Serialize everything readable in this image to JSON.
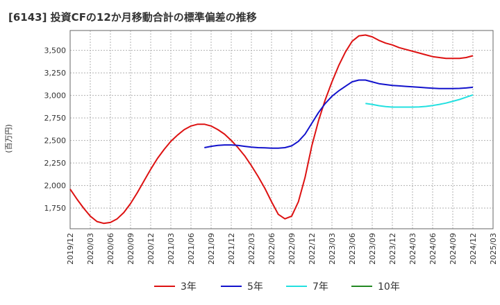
{
  "chart_data": {
    "type": "line",
    "title": "[6143]  投資CFの12か月移動合計の標準偏差の推移",
    "ylabel": "(百万円)",
    "xlabel": "",
    "ylim": [
      1520,
      3720
    ],
    "yticks": [
      1750,
      2000,
      2250,
      2500,
      2750,
      3000,
      3250,
      3500
    ],
    "ytick_labels": [
      "1,750",
      "2,000",
      "2,250",
      "2,500",
      "2,750",
      "3,000",
      "3,250",
      "3,500"
    ],
    "xticks": [
      "2019/12",
      "2020/03",
      "2020/06",
      "2020/09",
      "2020/12",
      "2021/03",
      "2021/06",
      "2021/09",
      "2021/12",
      "2022/03",
      "2022/06",
      "2022/09",
      "2022/12",
      "2023/03",
      "2023/06",
      "2023/09",
      "2023/12",
      "2024/03",
      "2024/06",
      "2024/09",
      "2024/12",
      "2025/03"
    ],
    "grid": true,
    "legend_position": "bottom",
    "series": [
      {
        "name": "3年",
        "color": "#dd1111",
        "x": [
          "2019/12",
          "2020/01",
          "2020/02",
          "2020/03",
          "2020/04",
          "2020/05",
          "2020/06",
          "2020/07",
          "2020/08",
          "2020/09",
          "2020/10",
          "2020/11",
          "2020/12",
          "2021/01",
          "2021/02",
          "2021/03",
          "2021/04",
          "2021/05",
          "2021/06",
          "2021/07",
          "2021/08",
          "2021/09",
          "2021/10",
          "2021/11",
          "2021/12",
          "2022/01",
          "2022/02",
          "2022/03",
          "2022/04",
          "2022/05",
          "2022/06",
          "2022/07",
          "2022/08",
          "2022/09",
          "2022/10",
          "2022/11",
          "2022/12",
          "2023/01",
          "2023/02",
          "2023/03",
          "2023/04",
          "2023/05",
          "2023/06",
          "2023/07",
          "2023/08",
          "2023/09",
          "2023/10",
          "2023/11",
          "2023/12",
          "2024/01",
          "2024/02",
          "2024/03",
          "2024/04",
          "2024/05",
          "2024/06",
          "2024/07",
          "2024/08",
          "2024/09",
          "2024/10",
          "2024/11",
          "2024/12"
        ],
        "values": [
          1960,
          1850,
          1750,
          1660,
          1600,
          1580,
          1590,
          1630,
          1700,
          1800,
          1920,
          2050,
          2180,
          2300,
          2400,
          2490,
          2560,
          2620,
          2660,
          2680,
          2680,
          2660,
          2620,
          2570,
          2500,
          2420,
          2330,
          2220,
          2100,
          1970,
          1820,
          1680,
          1630,
          1660,
          1820,
          2090,
          2440,
          2720,
          2950,
          3150,
          3330,
          3480,
          3600,
          3660,
          3670,
          3650,
          3610,
          3580,
          3560,
          3530,
          3510,
          3490,
          3470,
          3450,
          3430,
          3420,
          3410,
          3410,
          3410,
          3420,
          3440
        ]
      },
      {
        "name": "5年",
        "color": "#1111cc",
        "x": [
          "2021/08",
          "2021/09",
          "2021/10",
          "2021/11",
          "2021/12",
          "2022/01",
          "2022/02",
          "2022/03",
          "2022/04",
          "2022/05",
          "2022/06",
          "2022/07",
          "2022/08",
          "2022/09",
          "2022/10",
          "2022/11",
          "2022/12",
          "2023/01",
          "2023/02",
          "2023/03",
          "2023/04",
          "2023/05",
          "2023/06",
          "2023/07",
          "2023/08",
          "2023/09",
          "2023/10",
          "2023/11",
          "2023/12",
          "2024/01",
          "2024/02",
          "2024/03",
          "2024/04",
          "2024/05",
          "2024/06",
          "2024/07",
          "2024/08",
          "2024/09",
          "2024/10",
          "2024/11",
          "2024/12"
        ],
        "values": [
          2420,
          2435,
          2445,
          2450,
          2450,
          2445,
          2435,
          2425,
          2420,
          2418,
          2415,
          2415,
          2420,
          2440,
          2490,
          2570,
          2690,
          2810,
          2910,
          2990,
          3050,
          3100,
          3150,
          3170,
          3170,
          3150,
          3130,
          3120,
          3110,
          3105,
          3100,
          3095,
          3090,
          3085,
          3080,
          3075,
          3075,
          3075,
          3078,
          3082,
          3090
        ]
      },
      {
        "name": "7年",
        "color": "#22e0e0",
        "x": [
          "2023/08",
          "2023/09",
          "2023/10",
          "2023/11",
          "2023/12",
          "2024/01",
          "2024/02",
          "2024/03",
          "2024/04",
          "2024/05",
          "2024/06",
          "2024/07",
          "2024/08",
          "2024/09",
          "2024/10",
          "2024/11",
          "2024/12"
        ],
        "values": [
          2910,
          2900,
          2885,
          2875,
          2870,
          2870,
          2870,
          2870,
          2872,
          2878,
          2888,
          2900,
          2915,
          2935,
          2955,
          2980,
          3005
        ]
      },
      {
        "name": "10年",
        "color": "#228822",
        "x": [],
        "values": []
      }
    ]
  }
}
